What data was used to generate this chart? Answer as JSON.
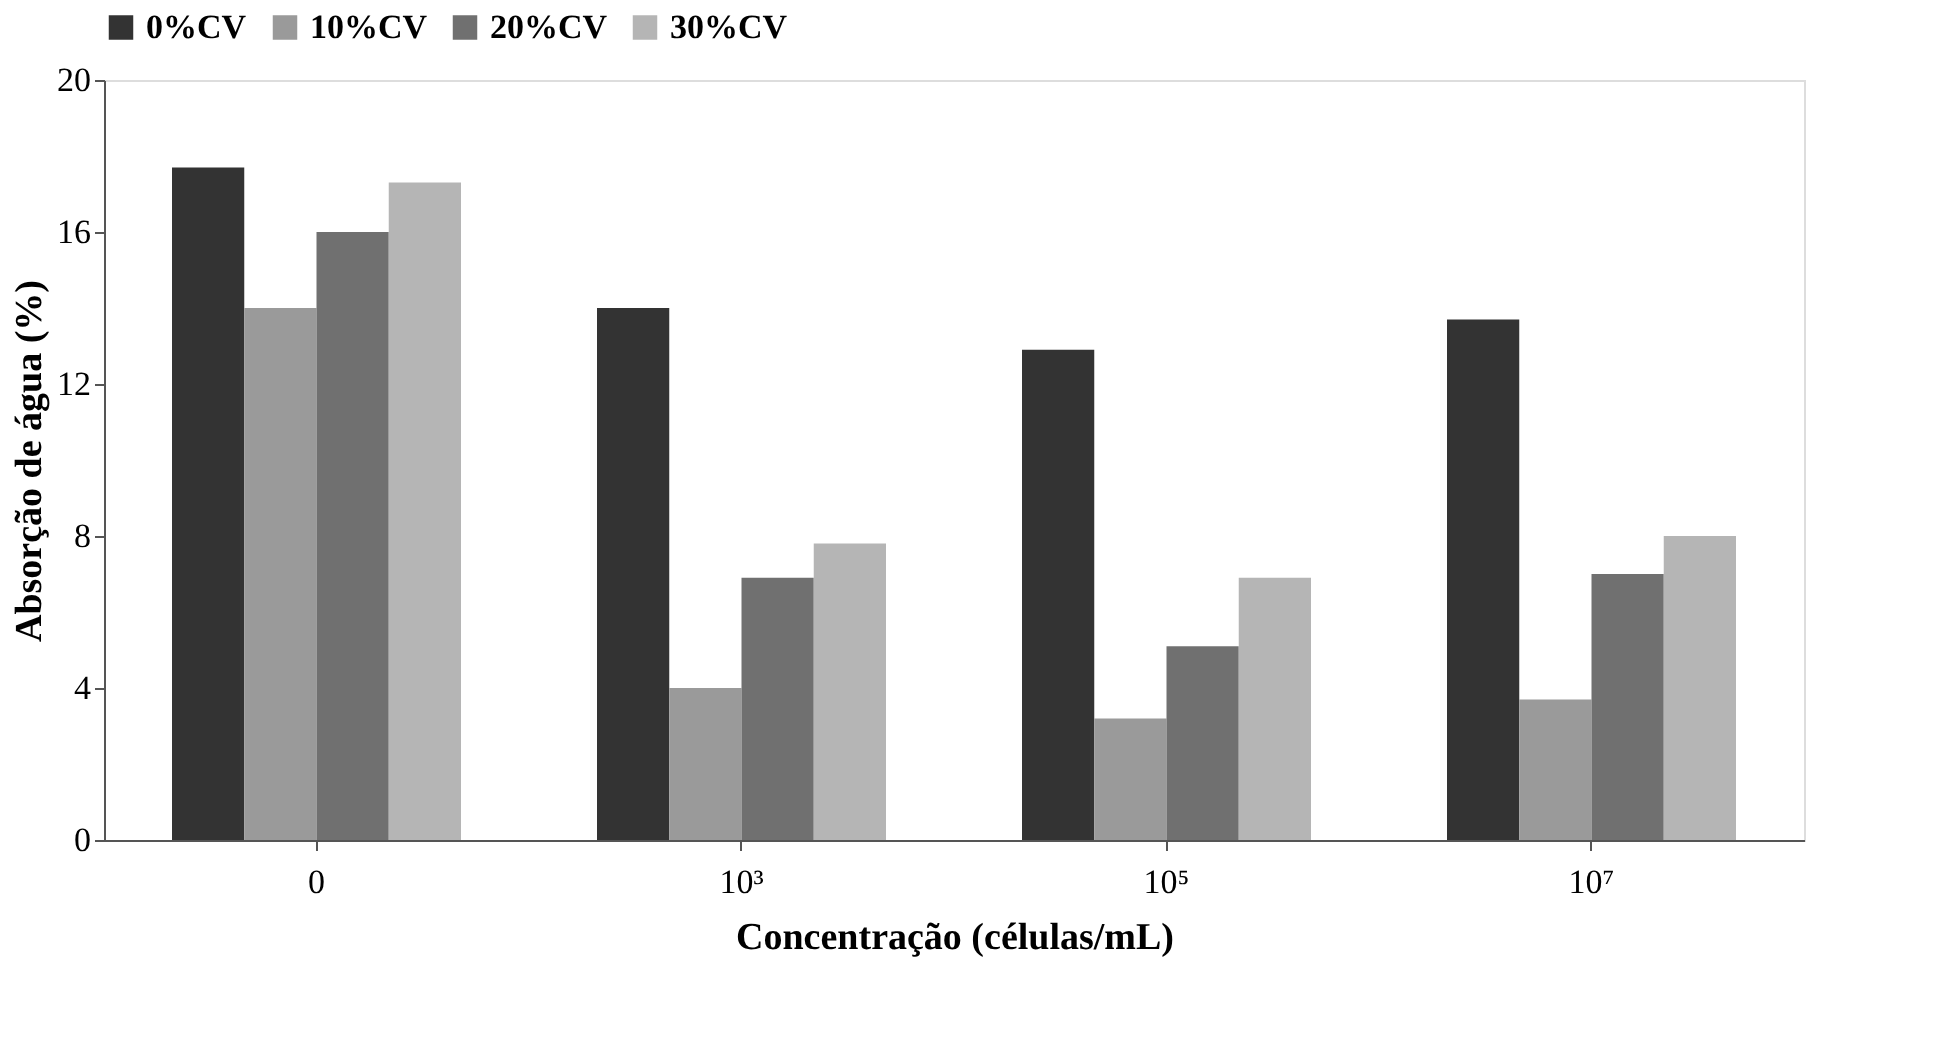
{
  "chart_data": {
    "type": "bar",
    "xlabel": "Concentração (células/mL)",
    "ylabel": "Absorção de água (%)",
    "categories": [
      "0",
      "10³",
      "10⁵",
      "10⁷"
    ],
    "series": [
      {
        "name": "0%CV",
        "color": "#333333",
        "values": [
          17.7,
          14.0,
          12.9,
          13.7
        ]
      },
      {
        "name": "10%CV",
        "color": "#9a9a9a",
        "values": [
          14.0,
          4.0,
          3.2,
          3.7
        ]
      },
      {
        "name": "20%CV",
        "color": "#707070",
        "values": [
          16.0,
          6.9,
          5.1,
          7.0
        ]
      },
      {
        "name": "30%CV",
        "color": "#b5b5b5",
        "values": [
          17.3,
          7.8,
          6.9,
          8.0
        ]
      }
    ],
    "ylim": [
      0,
      20
    ],
    "yticks": [
      0,
      4,
      8,
      12,
      16,
      20
    ],
    "grid": false,
    "legend": "top"
  }
}
